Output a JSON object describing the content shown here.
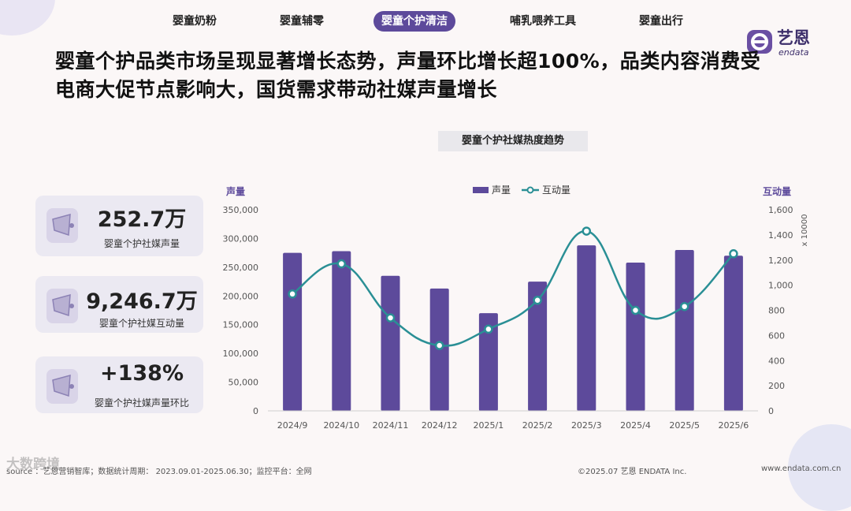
{
  "nav": {
    "items": [
      "婴童奶粉",
      "婴童辅零",
      "婴童个护清洁",
      "哺乳喂养工具",
      "婴童出行"
    ],
    "active_index": 2
  },
  "logo": {
    "cn": "艺恩",
    "en": "endata"
  },
  "headline": "婴童个护品类市场呈现显著增长态势，声量环比增长超100%，品类内容消费受电商大促节点影响大，国货需求带动社媒声量增长",
  "kpis": [
    {
      "value": "252.7万",
      "label": "婴童个护社媒声量"
    },
    {
      "value": "9,246.7万",
      "label": "婴童个护社媒互动量"
    },
    {
      "value": "+138%",
      "label": "婴童个护社媒声量环比"
    }
  ],
  "chart_data": {
    "type": "bar",
    "title": "婴童个护社媒热度趋势",
    "categories": [
      "2024/9",
      "2024/10",
      "2024/11",
      "2024/12",
      "2025/1",
      "2025/2",
      "2025/3",
      "2025/4",
      "2025/5",
      "2025/6"
    ],
    "series": [
      {
        "name": "声量",
        "type": "bar",
        "axis": "left",
        "color": "#5d4a9b",
        "values": [
          275000,
          278000,
          235000,
          213000,
          170000,
          225000,
          288000,
          258000,
          280000,
          270000
        ]
      },
      {
        "name": "互动量",
        "type": "line",
        "axis": "right",
        "color": "#2a8f95",
        "values": [
          930,
          1170,
          740,
          520,
          650,
          880,
          1430,
          800,
          830,
          1250
        ]
      }
    ],
    "ylabel_left": "声量",
    "ylabel_right": "互动量",
    "right_multiplier": "x 10000",
    "ylim_left": [
      0,
      350000
    ],
    "ylim_right": [
      0,
      1600
    ],
    "yticks_left": [
      "350,000",
      "300,000",
      "250,000",
      "200,000",
      "150,000",
      "100,000",
      "50,000",
      "0"
    ],
    "yticks_right": [
      "1,600",
      "1,400",
      "1,200",
      "1,000",
      "800",
      "600",
      "400",
      "200",
      "0"
    ],
    "legend": [
      "声量",
      "互动量"
    ],
    "legend_position": "top"
  },
  "footer": {
    "source": "source ：艺恩营销智库；数据统计周期： 2023.09.01-2025.06.30；监控平台：全网",
    "copyright": "©2025.07  艺恩 ENDATA Inc.",
    "url": "www.endata.com.cn",
    "watermark": "大数跨境"
  }
}
